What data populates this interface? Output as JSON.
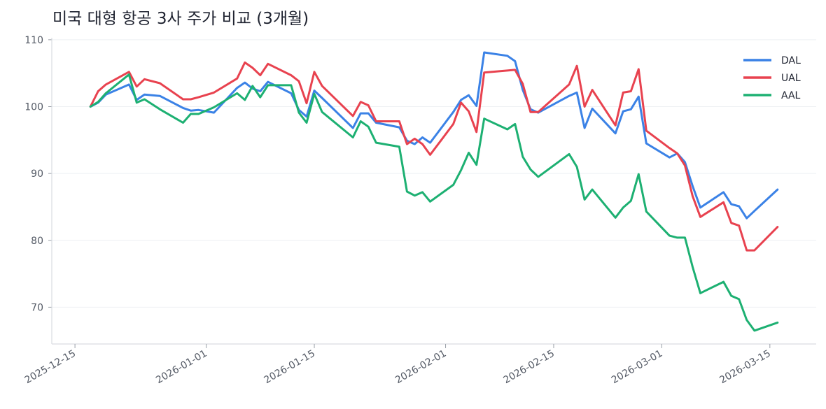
{
  "chart_data": {
    "type": "line",
    "title": "미국 대형 항공 3사 주가 비교 (3개월)",
    "xlabel": "",
    "ylabel": "",
    "x_ticks": [
      "2025-12-15",
      "2026-01-01",
      "2026-01-15",
      "2026-02-01",
      "2026-02-15",
      "2026-03-01",
      "2026-03-15"
    ],
    "y_ticks": [
      70,
      80,
      90,
      100,
      110
    ],
    "xlim": [
      "2025-12-12",
      "2026-03-21"
    ],
    "ylim": [
      64.5,
      110.3
    ],
    "grid": "horizontal",
    "legend_position": "top-right",
    "series": [
      {
        "name": "DAL",
        "color": "#3b82e6",
        "points": [
          [
            "2025-12-17",
            100.0
          ],
          [
            "2025-12-18",
            100.6
          ],
          [
            "2025-12-19",
            101.8
          ],
          [
            "2025-12-22",
            103.3
          ],
          [
            "2025-12-23",
            101.0
          ],
          [
            "2025-12-24",
            101.8
          ],
          [
            "2025-12-26",
            101.6
          ],
          [
            "2025-12-29",
            99.8
          ],
          [
            "2025-12-30",
            99.4
          ],
          [
            "2025-12-31",
            99.5
          ],
          [
            "2026-01-02",
            99.1
          ],
          [
            "2026-01-05",
            102.8
          ],
          [
            "2026-01-06",
            103.6
          ],
          [
            "2026-01-07",
            102.7
          ],
          [
            "2026-01-08",
            102.3
          ],
          [
            "2026-01-09",
            103.7
          ],
          [
            "2026-01-12",
            102.0
          ],
          [
            "2026-01-13",
            99.5
          ],
          [
            "2026-01-14",
            98.5
          ],
          [
            "2026-01-15",
            102.4
          ],
          [
            "2026-01-16",
            101.3
          ],
          [
            "2026-01-20",
            96.8
          ],
          [
            "2026-01-21",
            99.0
          ],
          [
            "2026-01-22",
            99.0
          ],
          [
            "2026-01-23",
            97.6
          ],
          [
            "2026-01-26",
            96.9
          ],
          [
            "2026-01-27",
            94.9
          ],
          [
            "2026-01-28",
            94.4
          ],
          [
            "2026-01-29",
            95.4
          ],
          [
            "2026-01-30",
            94.6
          ],
          [
            "2026-02-02",
            99.2
          ],
          [
            "2026-02-03",
            101.0
          ],
          [
            "2026-02-04",
            101.7
          ],
          [
            "2026-02-05",
            100.1
          ],
          [
            "2026-02-06",
            108.1
          ],
          [
            "2026-02-09",
            107.6
          ],
          [
            "2026-02-10",
            106.8
          ],
          [
            "2026-02-11",
            102.5
          ],
          [
            "2026-02-12",
            99.6
          ],
          [
            "2026-02-13",
            99.1
          ],
          [
            "2026-02-17",
            101.6
          ],
          [
            "2026-02-18",
            102.1
          ],
          [
            "2026-02-19",
            96.8
          ],
          [
            "2026-02-20",
            99.7
          ],
          [
            "2026-02-23",
            96.0
          ],
          [
            "2026-02-24",
            99.3
          ],
          [
            "2026-02-25",
            99.6
          ],
          [
            "2026-02-26",
            101.5
          ],
          [
            "2026-02-27",
            94.5
          ],
          [
            "2026-03-02",
            92.4
          ],
          [
            "2026-03-03",
            93.0
          ],
          [
            "2026-03-04",
            91.7
          ],
          [
            "2026-03-05",
            88.1
          ],
          [
            "2026-03-06",
            84.9
          ],
          [
            "2026-03-09",
            87.2
          ],
          [
            "2026-03-10",
            85.4
          ],
          [
            "2026-03-11",
            85.1
          ],
          [
            "2026-03-12",
            83.3
          ],
          [
            "2026-03-13",
            84.4
          ],
          [
            "2026-03-16",
            87.6
          ]
        ]
      },
      {
        "name": "UAL",
        "color": "#e8424f",
        "points": [
          [
            "2025-12-17",
            100.0
          ],
          [
            "2025-12-18",
            102.3
          ],
          [
            "2025-12-19",
            103.3
          ],
          [
            "2025-12-22",
            105.2
          ],
          [
            "2025-12-23",
            103.0
          ],
          [
            "2025-12-24",
            104.1
          ],
          [
            "2025-12-26",
            103.5
          ],
          [
            "2025-12-29",
            101.1
          ],
          [
            "2025-12-30",
            101.1
          ],
          [
            "2025-12-31",
            101.4
          ],
          [
            "2026-01-02",
            102.1
          ],
          [
            "2026-01-05",
            104.2
          ],
          [
            "2026-01-06",
            106.6
          ],
          [
            "2026-01-07",
            105.8
          ],
          [
            "2026-01-08",
            104.7
          ],
          [
            "2026-01-09",
            106.4
          ],
          [
            "2026-01-12",
            104.7
          ],
          [
            "2026-01-13",
            103.8
          ],
          [
            "2026-01-14",
            100.5
          ],
          [
            "2026-01-15",
            105.2
          ],
          [
            "2026-01-16",
            103.1
          ],
          [
            "2026-01-20",
            98.6
          ],
          [
            "2026-01-21",
            100.7
          ],
          [
            "2026-01-22",
            100.2
          ],
          [
            "2026-01-23",
            97.8
          ],
          [
            "2026-01-26",
            97.8
          ],
          [
            "2026-01-27",
            94.4
          ],
          [
            "2026-01-28",
            95.2
          ],
          [
            "2026-01-29",
            94.4
          ],
          [
            "2026-01-30",
            92.8
          ],
          [
            "2026-02-02",
            97.4
          ],
          [
            "2026-02-03",
            100.6
          ],
          [
            "2026-02-04",
            99.3
          ],
          [
            "2026-02-05",
            96.2
          ],
          [
            "2026-02-06",
            105.1
          ],
          [
            "2026-02-09",
            105.4
          ],
          [
            "2026-02-10",
            105.5
          ],
          [
            "2026-02-11",
            103.4
          ],
          [
            "2026-02-12",
            99.2
          ],
          [
            "2026-02-13",
            99.2
          ],
          [
            "2026-02-17",
            103.3
          ],
          [
            "2026-02-18",
            106.1
          ],
          [
            "2026-02-19",
            100.0
          ],
          [
            "2026-02-20",
            102.5
          ],
          [
            "2026-02-23",
            97.2
          ],
          [
            "2026-02-24",
            102.1
          ],
          [
            "2026-02-25",
            102.3
          ],
          [
            "2026-02-26",
            105.6
          ],
          [
            "2026-02-27",
            96.4
          ],
          [
            "2026-03-02",
            93.8
          ],
          [
            "2026-03-03",
            93.0
          ],
          [
            "2026-03-04",
            91.2
          ],
          [
            "2026-03-05",
            86.6
          ],
          [
            "2026-03-06",
            83.5
          ],
          [
            "2026-03-09",
            85.7
          ],
          [
            "2026-03-10",
            82.6
          ],
          [
            "2026-03-11",
            82.2
          ],
          [
            "2026-03-12",
            78.5
          ],
          [
            "2026-03-13",
            78.5
          ],
          [
            "2026-03-16",
            82.0
          ]
        ]
      },
      {
        "name": "AAL",
        "color": "#1db072",
        "points": [
          [
            "2025-12-17",
            100.0
          ],
          [
            "2025-12-18",
            100.7
          ],
          [
            "2025-12-19",
            102.0
          ],
          [
            "2025-12-22",
            104.8
          ],
          [
            "2025-12-23",
            100.6
          ],
          [
            "2025-12-24",
            101.1
          ],
          [
            "2025-12-26",
            99.6
          ],
          [
            "2025-12-29",
            97.6
          ],
          [
            "2025-12-30",
            98.9
          ],
          [
            "2025-12-31",
            98.9
          ],
          [
            "2026-01-02",
            99.9
          ],
          [
            "2026-01-05",
            102.0
          ],
          [
            "2026-01-06",
            101.0
          ],
          [
            "2026-01-07",
            103.1
          ],
          [
            "2026-01-08",
            101.4
          ],
          [
            "2026-01-09",
            103.2
          ],
          [
            "2026-01-12",
            103.2
          ],
          [
            "2026-01-13",
            99.1
          ],
          [
            "2026-01-14",
            97.6
          ],
          [
            "2026-01-15",
            101.9
          ],
          [
            "2026-01-16",
            99.2
          ],
          [
            "2026-01-20",
            95.4
          ],
          [
            "2026-01-21",
            97.8
          ],
          [
            "2026-01-22",
            97.0
          ],
          [
            "2026-01-23",
            94.6
          ],
          [
            "2026-01-26",
            94.0
          ],
          [
            "2026-01-27",
            87.3
          ],
          [
            "2026-01-28",
            86.7
          ],
          [
            "2026-01-29",
            87.2
          ],
          [
            "2026-01-30",
            85.8
          ],
          [
            "2026-02-02",
            88.3
          ],
          [
            "2026-02-03",
            90.5
          ],
          [
            "2026-02-04",
            93.1
          ],
          [
            "2026-02-05",
            91.3
          ],
          [
            "2026-02-06",
            98.2
          ],
          [
            "2026-02-09",
            96.6
          ],
          [
            "2026-02-10",
            97.4
          ],
          [
            "2026-02-11",
            92.5
          ],
          [
            "2026-02-12",
            90.6
          ],
          [
            "2026-02-13",
            89.5
          ],
          [
            "2026-02-17",
            92.9
          ],
          [
            "2026-02-18",
            91.0
          ],
          [
            "2026-02-19",
            86.1
          ],
          [
            "2026-02-20",
            87.6
          ],
          [
            "2026-02-23",
            83.4
          ],
          [
            "2026-02-24",
            84.9
          ],
          [
            "2026-02-25",
            85.9
          ],
          [
            "2026-02-26",
            89.9
          ],
          [
            "2026-02-27",
            84.3
          ],
          [
            "2026-03-02",
            80.7
          ],
          [
            "2026-03-03",
            80.4
          ],
          [
            "2026-03-04",
            80.4
          ],
          [
            "2026-03-05",
            76.0
          ],
          [
            "2026-03-06",
            72.1
          ],
          [
            "2026-03-09",
            73.8
          ],
          [
            "2026-03-10",
            71.7
          ],
          [
            "2026-03-11",
            71.2
          ],
          [
            "2026-03-12",
            68.1
          ],
          [
            "2026-03-13",
            66.5
          ],
          [
            "2026-03-16",
            67.7
          ]
        ]
      }
    ]
  }
}
